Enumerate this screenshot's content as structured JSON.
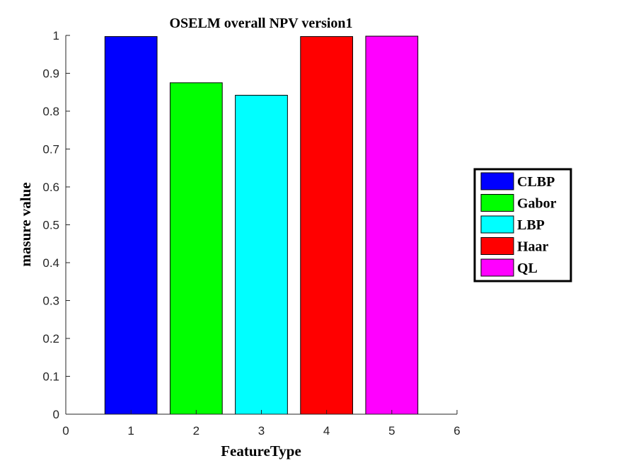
{
  "chart_data": {
    "type": "bar",
    "title": "OSELM overall NPV version1",
    "xlabel": "FeatureType",
    "ylabel": "masure value",
    "categories": [
      1,
      2,
      3,
      4,
      5
    ],
    "values": [
      0.997,
      0.875,
      0.842,
      0.997,
      0.998
    ],
    "series_names": [
      "CLBP",
      "Gabor",
      "LBP",
      "Haar",
      "QL"
    ],
    "colors": [
      "#0000ff",
      "#00ff00",
      "#00ffff",
      "#ff0000",
      "#ff00ff"
    ],
    "xlim": [
      0,
      6
    ],
    "ylim": [
      0,
      1
    ],
    "xticks": [
      "0",
      "1",
      "2",
      "3",
      "4",
      "5",
      "6"
    ],
    "yticks": [
      "0",
      "0.1",
      "0.2",
      "0.3",
      "0.4",
      "0.5",
      "0.6",
      "0.7",
      "0.8",
      "0.9",
      "1"
    ],
    "grid": false,
    "legend_position": "right"
  }
}
